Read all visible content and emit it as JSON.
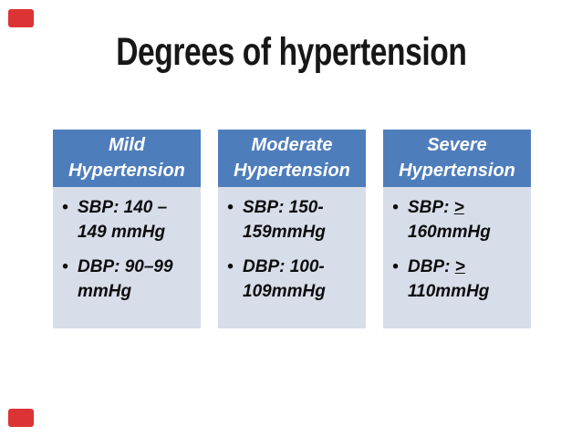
{
  "slide": {
    "title": "Degrees of hypertension",
    "colors": {
      "accent_red": "#dc3434",
      "card_header_bg": "#4e7dbc",
      "card_body_bg": "#d7dde9",
      "card_header_text": "#ffffff",
      "card_body_text": "#0d0d0d",
      "title_text": "#171717"
    },
    "bullet_glyph": "•",
    "cards": [
      {
        "title_lines": [
          "Mild",
          "Hypertension"
        ],
        "bullets": [
          {
            "lines": [
              [
                {
                  "t": "SBP: 140 –"
                }
              ],
              [
                {
                  "t": "149 mmHg"
                }
              ]
            ]
          },
          {
            "lines": [
              [
                {
                  "t": "DBP: 90–99"
                }
              ],
              [
                {
                  "t": "mmHg"
                }
              ]
            ]
          }
        ]
      },
      {
        "title_lines": [
          "Moderate",
          "Hypertension"
        ],
        "bullets": [
          {
            "lines": [
              [
                {
                  "t": "SBP: 150-"
                }
              ],
              [
                {
                  "t": "159mmHg"
                }
              ]
            ]
          },
          {
            "lines": [
              [
                {
                  "t": "DBP: 100-"
                }
              ],
              [
                {
                  "t": "109mmHg"
                }
              ]
            ]
          }
        ]
      },
      {
        "title_lines": [
          "Severe",
          "Hypertension"
        ],
        "bullets": [
          {
            "lines": [
              [
                {
                  "t": "SBP: "
                },
                {
                  "t": ">",
                  "u": true
                }
              ],
              [
                {
                  "t": "160mmHg"
                }
              ]
            ]
          },
          {
            "lines": [
              [
                {
                  "t": "DBP: "
                },
                {
                  "t": ">",
                  "u": true
                }
              ],
              [
                {
                  "t": "110mmHg"
                }
              ]
            ]
          }
        ]
      }
    ]
  }
}
